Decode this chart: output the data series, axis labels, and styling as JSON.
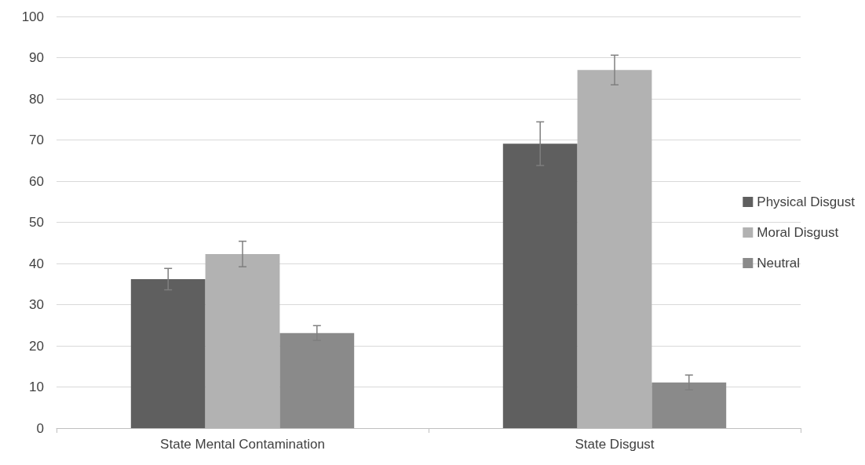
{
  "chart_data": {
    "type": "bar",
    "categories": [
      "State Mental Contamination",
      "State Disgust"
    ],
    "series": [
      {
        "name": "Physical Disgust",
        "color": "#5f5f5f",
        "values": [
          36.2,
          69.1
        ],
        "errors": [
          2.6,
          5.3
        ]
      },
      {
        "name": "Moral Disgust",
        "color": "#b2b2b2",
        "values": [
          42.3,
          87
        ],
        "errors": [
          3.1,
          3.6
        ]
      },
      {
        "name": "Neutral",
        "color": "#8a8a8a",
        "values": [
          23.1,
          11.1
        ],
        "errors": [
          1.8,
          1.8
        ]
      }
    ],
    "ylim": [
      0,
      100
    ],
    "yticks": [
      0,
      10,
      20,
      30,
      40,
      50,
      60,
      70,
      80,
      90,
      100
    ],
    "grid": "y",
    "legend": "right"
  }
}
